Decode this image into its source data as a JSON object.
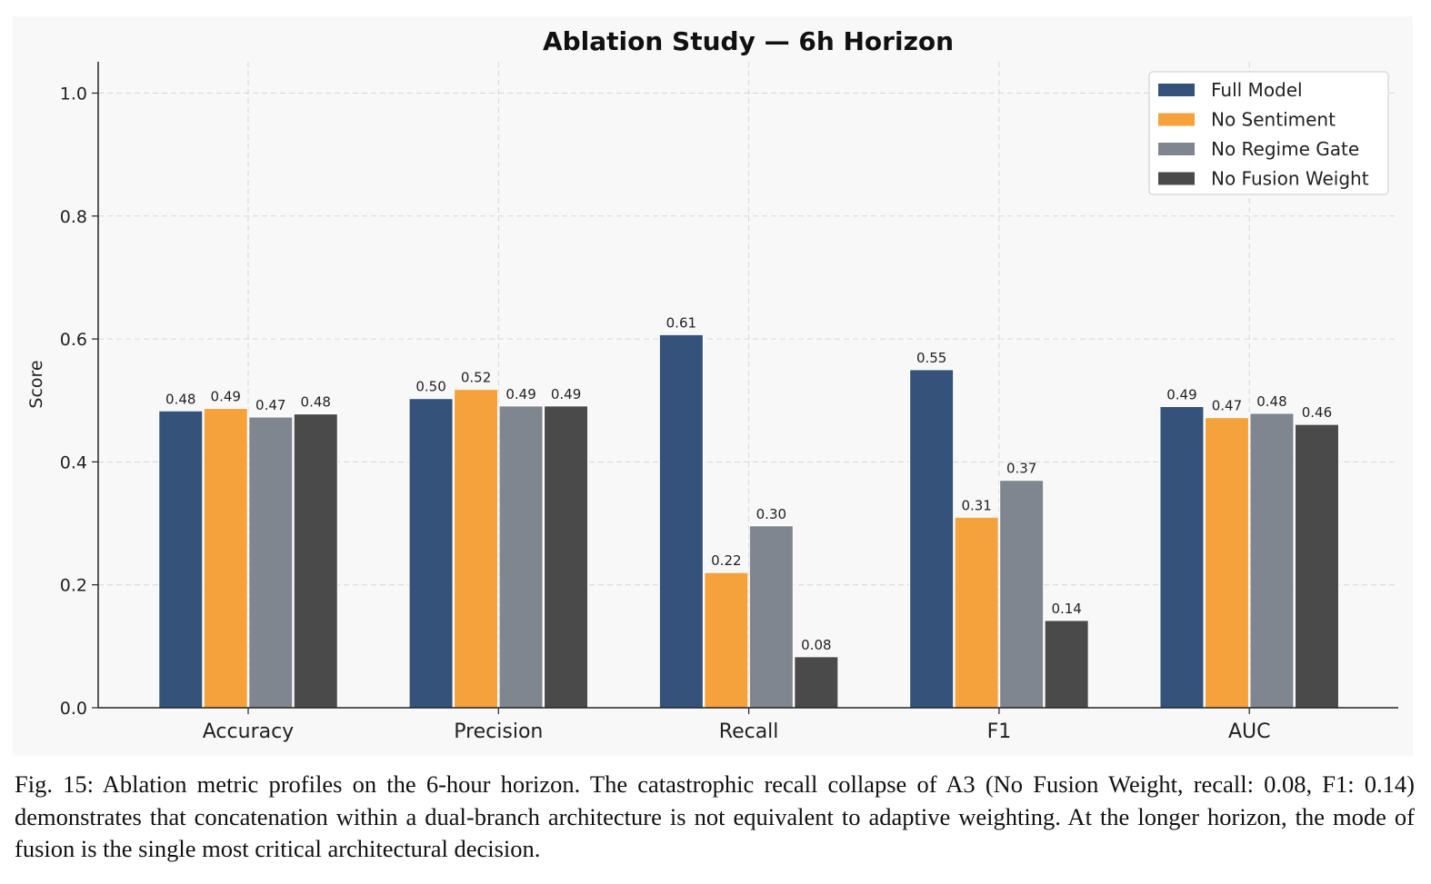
{
  "chart_data": {
    "type": "bar",
    "title": "Ablation Study — 6h Horizon",
    "xlabel": "",
    "ylabel": "Score",
    "ylim": [
      0,
      1.05
    ],
    "yticks": [
      "0.0",
      "0.2",
      "0.4",
      "0.6",
      "0.8",
      "1.0"
    ],
    "categories": [
      "Accuracy",
      "Precision",
      "Recall",
      "F1",
      "AUC"
    ],
    "grid": true,
    "legend_position": "top-right",
    "series": [
      {
        "name": "Full Model",
        "color": "#34527a",
        "values": [
          0.483,
          0.503,
          0.607,
          0.55,
          0.49
        ],
        "labels": [
          "0.48",
          "0.50",
          "0.61",
          "0.55",
          "0.49"
        ]
      },
      {
        "name": "No Sentiment",
        "color": "#f5a23d",
        "values": [
          0.487,
          0.518,
          0.22,
          0.31,
          0.472
        ],
        "labels": [
          "0.49",
          "0.52",
          "0.22",
          "0.31",
          "0.47"
        ]
      },
      {
        "name": "No Regime Gate",
        "color": "#80868f",
        "values": [
          0.473,
          0.491,
          0.296,
          0.37,
          0.479
        ],
        "labels": [
          "0.47",
          "0.49",
          "0.30",
          "0.37",
          "0.48"
        ]
      },
      {
        "name": "No Fusion Weight",
        "color": "#4a4a4a",
        "values": [
          0.478,
          0.491,
          0.083,
          0.142,
          0.461
        ],
        "labels": [
          "0.48",
          "0.49",
          "0.08",
          "0.14",
          "0.46"
        ]
      }
    ]
  },
  "caption": "Fig. 15: Ablation metric profiles on the 6-hour horizon. The catastrophic recall collapse of A3 (No Fusion Weight, recall: 0.08, F1: 0.14) demonstrates that concatenation within a dual-branch architecture is not equivalent to adaptive weighting. At the longer horizon, the mode of fusion is the single most critical architectural decision."
}
